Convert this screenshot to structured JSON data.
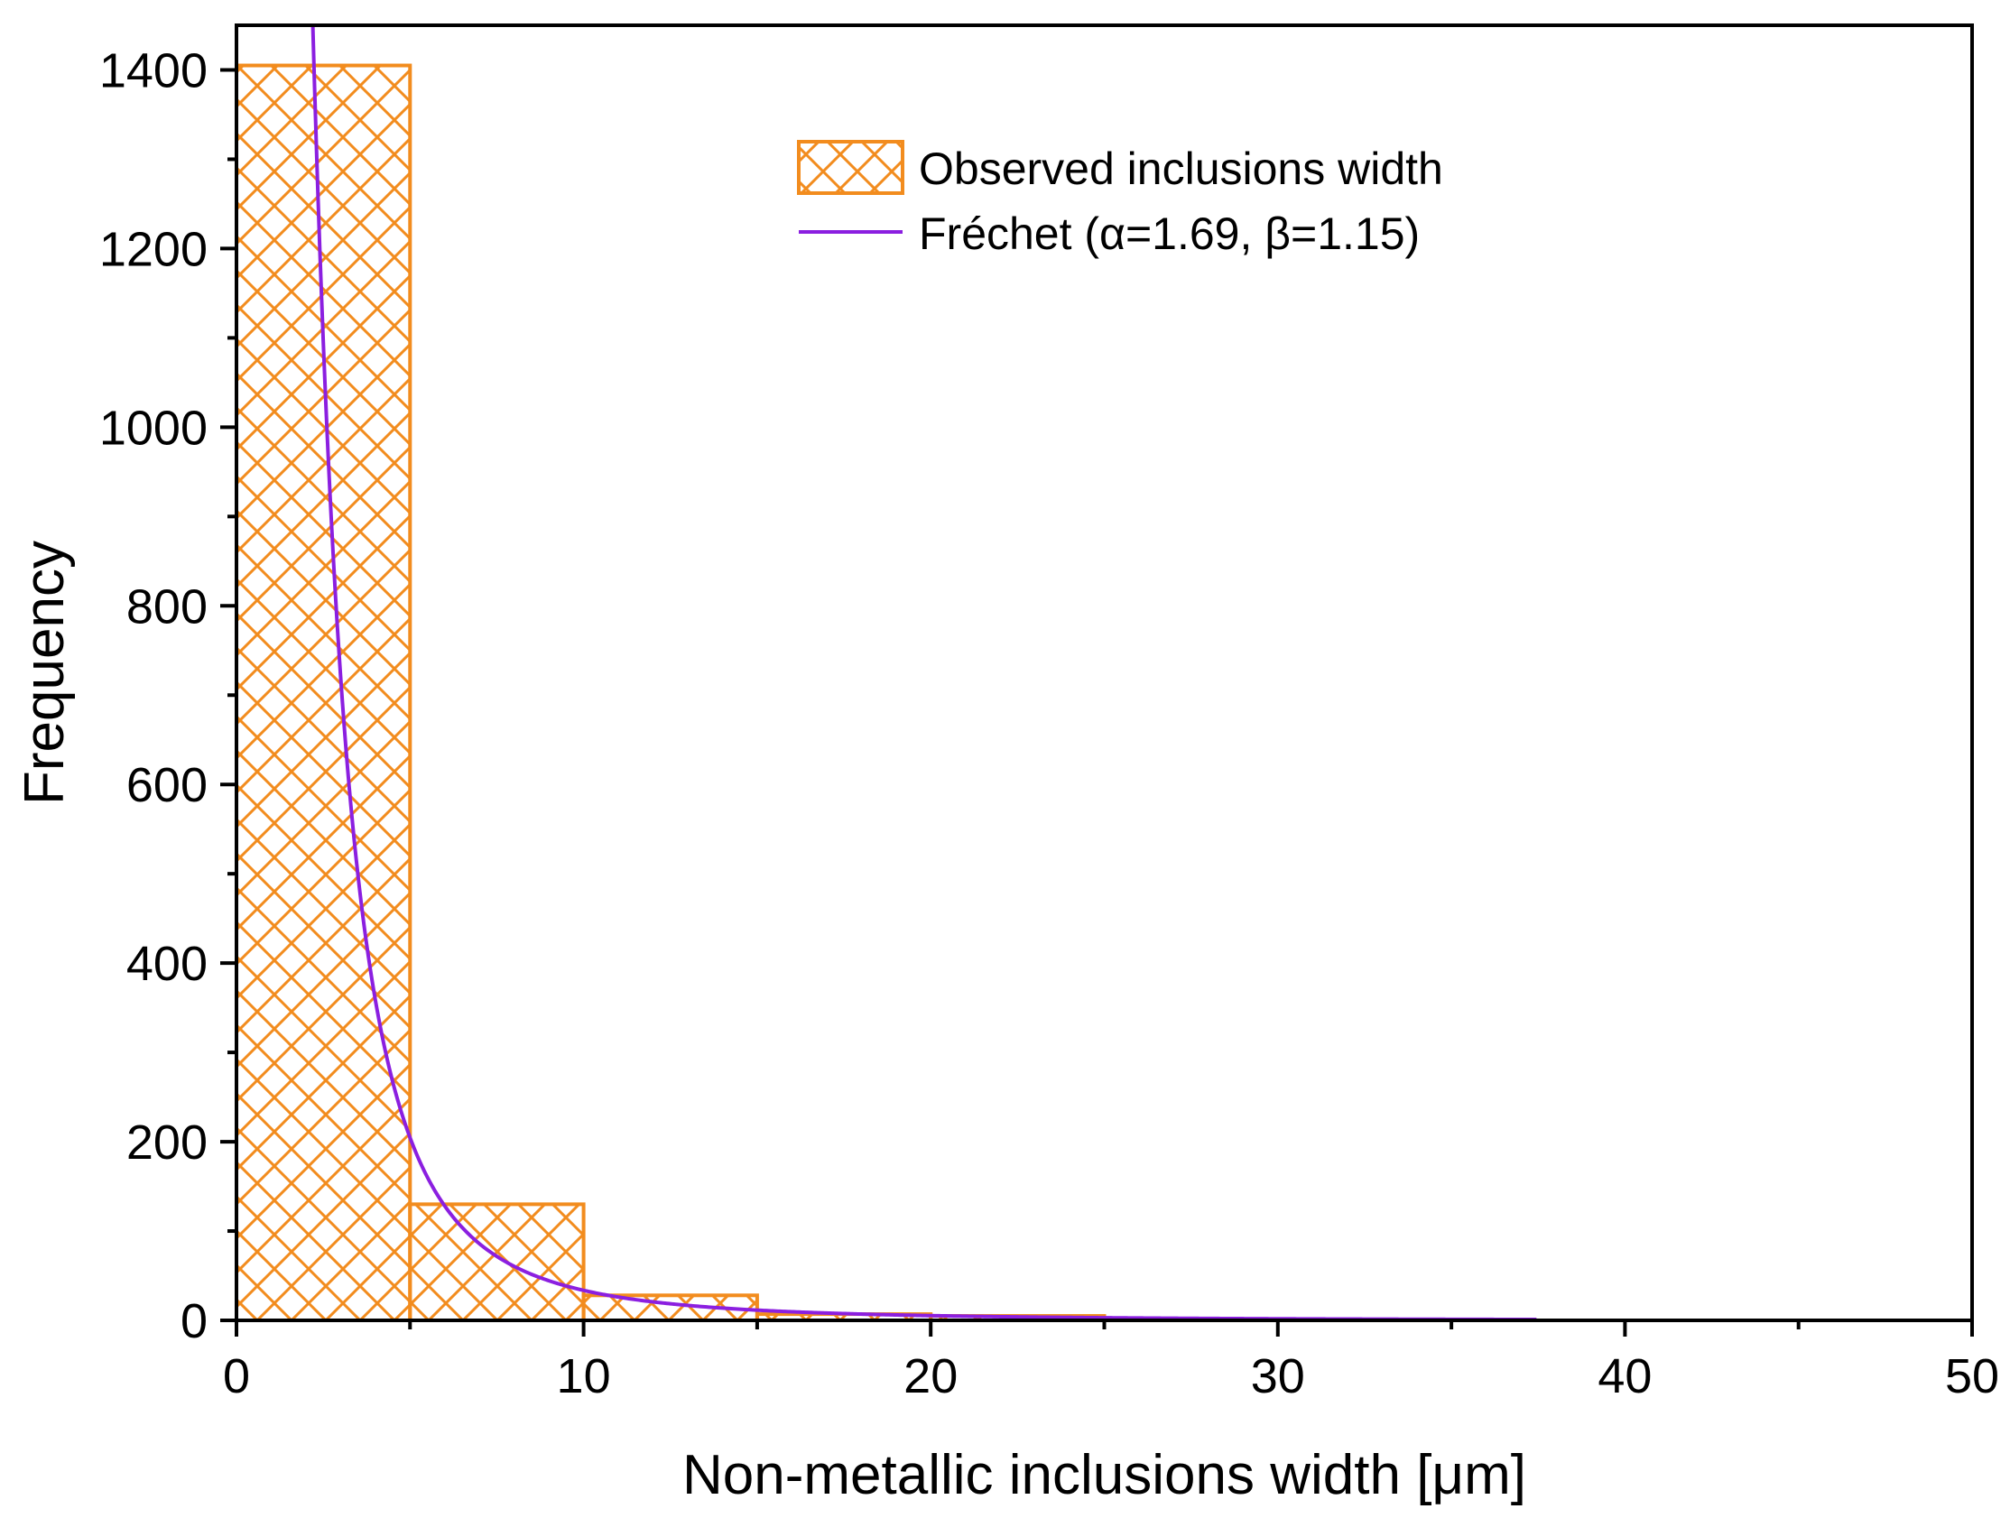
{
  "chart_data": {
    "type": "bar",
    "title": "",
    "xlabel": "Non-metallic inclusions width [μm]",
    "ylabel": "Frequency",
    "xlim": [
      0,
      50
    ],
    "ylim": [
      0,
      1450
    ],
    "x_ticks": [
      "0",
      "10",
      "20",
      "30",
      "40",
      "50"
    ],
    "y_ticks": [
      "0",
      "200",
      "400",
      "600",
      "800",
      "1000",
      "1200",
      "1400"
    ],
    "bin_width": 5,
    "bins": [
      {
        "start": 0,
        "end": 5,
        "value": 1405
      },
      {
        "start": 5,
        "end": 10,
        "value": 130
      },
      {
        "start": 10,
        "end": 15,
        "value": 28
      },
      {
        "start": 15,
        "end": 20,
        "value": 7
      },
      {
        "start": 20,
        "end": 25,
        "value": 5
      },
      {
        "start": 25,
        "end": 30,
        "value": 1
      },
      {
        "start": 30,
        "end": 35,
        "value": 1
      },
      {
        "start": 35,
        "end": 40,
        "value": 0
      },
      {
        "start": 40,
        "end": 45,
        "value": 0
      },
      {
        "start": 45,
        "end": 50,
        "value": 0
      }
    ],
    "fit": {
      "name": "Fréchet (α=1.69, β=1.15)",
      "alpha": 1.69,
      "beta": 1.15,
      "x_start": 2.2,
      "x_end": 37.5
    },
    "series": [
      {
        "name": "Observed inclusions width",
        "kind": "histogram",
        "color": "#f28c1e"
      },
      {
        "name": "Fréchet (α=1.69, β=1.15)",
        "kind": "line",
        "color": "#8b1fe0"
      }
    ],
    "legend": {
      "position": "top-center",
      "items": [
        "Observed inclusions width",
        "Fréchet (α=1.69, β=1.15)"
      ]
    }
  }
}
